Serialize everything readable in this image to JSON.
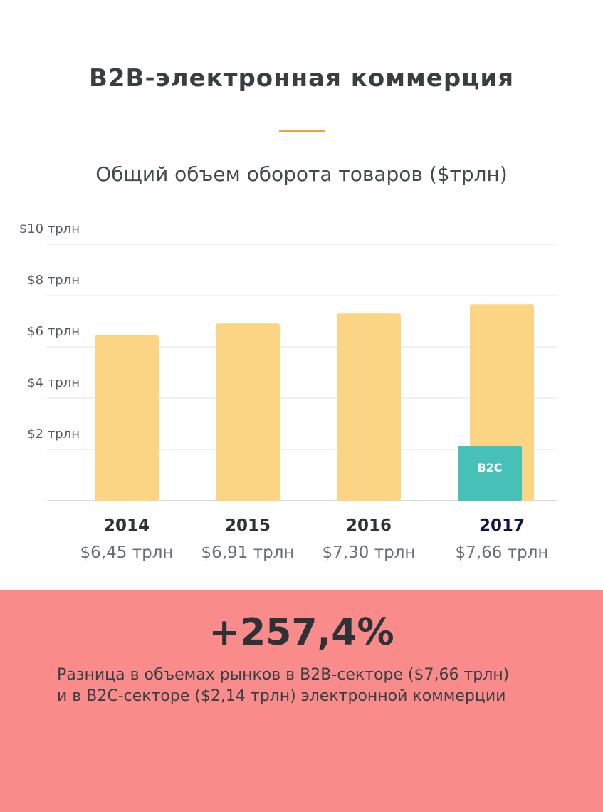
{
  "header": {
    "title": "B2B-электронная коммерция"
  },
  "chart_data": {
    "type": "bar",
    "title": "Общий объем оборота товаров ($трлн)",
    "categories": [
      "2014",
      "2015",
      "2016",
      "2017"
    ],
    "values": [
      6.45,
      6.91,
      7.3,
      7.66
    ],
    "value_labels": [
      "$6,45 трлн",
      "$6,91 трлн",
      "$7,30 трлн",
      "$7,66 трлн"
    ],
    "ylim": [
      0,
      10
    ],
    "yticks": [
      2,
      4,
      6,
      8,
      10
    ],
    "ytick_labels": [
      "$2 трлн",
      "$4 трлн",
      "$6 трлн",
      "$8 трлн",
      "$10 трлн"
    ],
    "grid": true,
    "overlay": {
      "category": "2017",
      "label": "B2C",
      "value": 2.14,
      "color": "#46c1b8"
    },
    "bar_color": "#fcd584",
    "highlight_category": "2017"
  },
  "footer": {
    "stat": "+257,4%",
    "note_line1": "Разница в объемах рынков в B2B-секторе ($7,66 трлн)",
    "note_line2": "и в B2C-секторе ($2,14 трлн) электронной коммерции"
  }
}
